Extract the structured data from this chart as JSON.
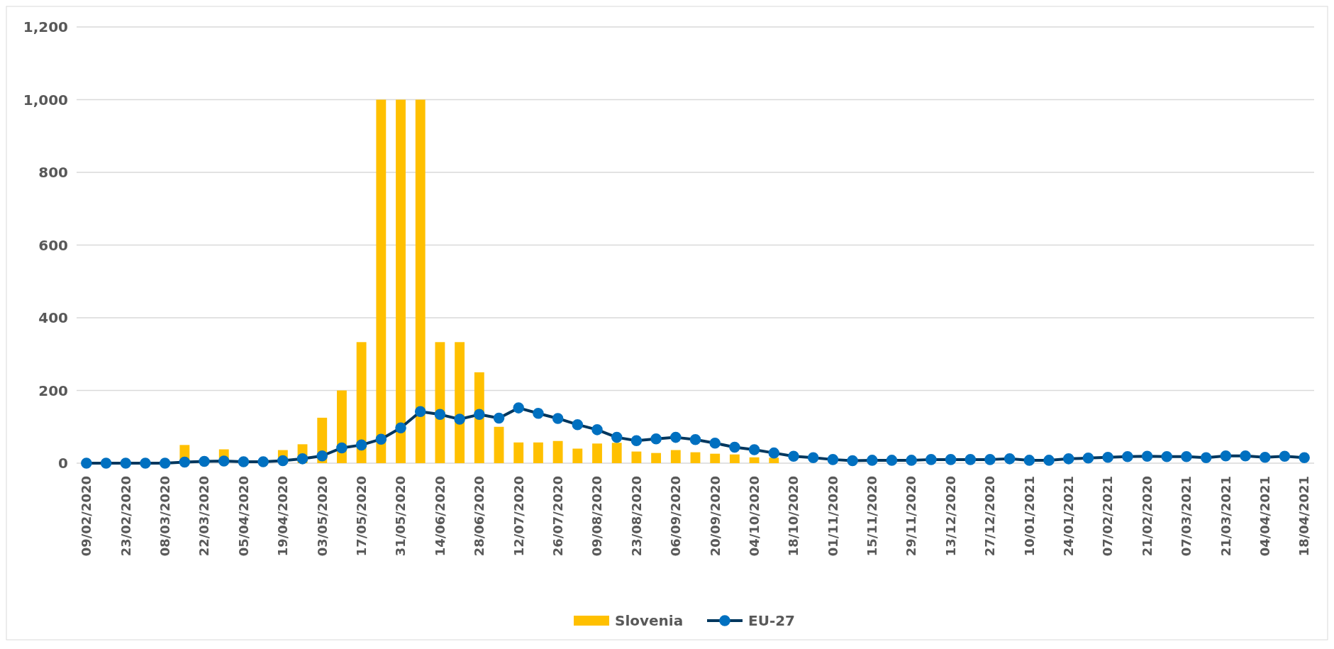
{
  "chart_data": {
    "type": "bar",
    "categories": [
      "09/02/2020",
      null,
      "23/02/2020",
      null,
      "08/03/2020",
      null,
      "22/03/2020",
      null,
      "05/04/2020",
      null,
      "19/04/2020",
      null,
      "03/05/2020",
      null,
      "17/05/2020",
      null,
      "31/05/2020",
      null,
      "14/06/2020",
      null,
      "28/06/2020",
      null,
      "12/07/2020",
      null,
      "26/07/2020",
      null,
      "09/08/2020",
      null,
      "23/08/2020",
      null,
      "06/09/2020",
      null,
      "20/09/2020",
      null,
      "04/10/2020",
      null,
      "18/10/2020",
      null,
      "01/11/2020",
      null,
      "15/11/2020",
      null,
      "29/11/2020",
      null,
      "13/12/2020",
      null,
      "27/12/2020",
      null,
      "10/01/2021",
      null,
      "24/01/2021",
      null,
      "07/02/2021",
      null,
      "21/02/2020",
      null,
      "07/03/2021",
      null,
      "21/03/2021",
      null,
      "04/04/2021",
      null,
      "18/04/2021"
    ],
    "series": [
      {
        "name": "Slovenia",
        "color": "#ffc000",
        "values": [
          0,
          0,
          0,
          0,
          0,
          50,
          0,
          38,
          null,
          null,
          36,
          52,
          125,
          200,
          333,
          1000,
          1000,
          1000,
          333,
          333,
          250,
          100,
          57,
          57,
          61,
          40,
          54,
          56,
          32,
          28,
          36,
          30,
          26,
          24,
          16,
          15,
          null,
          0,
          0,
          0,
          0,
          0,
          0,
          0,
          0,
          0,
          0,
          0,
          0,
          0,
          0,
          0,
          0,
          0,
          0,
          0,
          0,
          0,
          0,
          0,
          0,
          0,
          0
        ]
      },
      {
        "name": "EU-27",
        "type": "line",
        "color": "#0070c0",
        "values": [
          0,
          0,
          0,
          0,
          0,
          3,
          5,
          6,
          4,
          4,
          7,
          12,
          20,
          42,
          50,
          66,
          97,
          142,
          134,
          121,
          134,
          124,
          152,
          137,
          123,
          106,
          92,
          71,
          62,
          67,
          71,
          65,
          55,
          44,
          37,
          28,
          19,
          15,
          10,
          7,
          8,
          8,
          8,
          10,
          10,
          10,
          10,
          12,
          8,
          8,
          12,
          14,
          16,
          18,
          19,
          18,
          18,
          15,
          20,
          20,
          16,
          19,
          15
        ]
      }
    ],
    "ylim": [
      0,
      1200
    ],
    "yticks": [
      0,
      200,
      400,
      600,
      800,
      {
        "value": 1000,
        "label": "1,000"
      },
      {
        "value": 1200,
        "label": "1,200"
      }
    ],
    "grid": "y",
    "legend": "bottom",
    "marker": "circle",
    "line_style": "solid"
  }
}
